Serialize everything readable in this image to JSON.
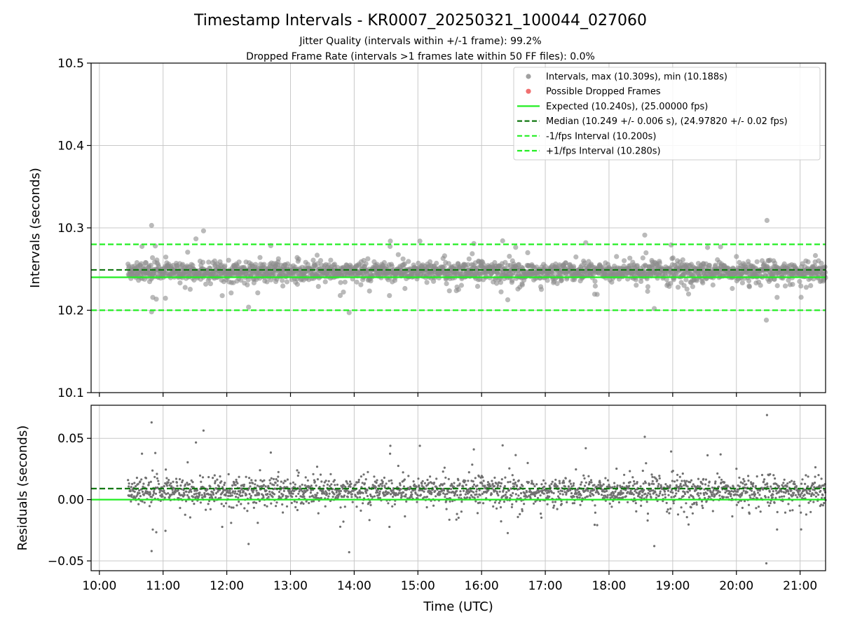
{
  "chart_data": {
    "type": "scatter",
    "title": "Timestamp Intervals - KR0007_20250321_100044_027060",
    "subtitle_lines": [
      "Jitter Quality (intervals within +/-1 frame): 99.2%",
      "Dropped Frame Rate (intervals >1 frames late within 50 FF files): 0.0%"
    ],
    "xlabel": "Time (UTC)",
    "x_range_hours": [
      9.87,
      21.4
    ],
    "x_ticks": [
      "10:00",
      "11:00",
      "12:00",
      "13:00",
      "14:00",
      "15:00",
      "16:00",
      "17:00",
      "18:00",
      "19:00",
      "20:00",
      "21:00"
    ],
    "x_tick_hours": [
      10,
      11,
      12,
      13,
      14,
      15,
      16,
      17,
      18,
      19,
      20,
      21
    ],
    "data_start_hour": 10.45,
    "data_end_hour": 21.4,
    "grid": true,
    "legend_position": "upper right",
    "top_panel": {
      "ylabel": "Intervals (seconds)",
      "ylim": [
        10.1,
        10.5
      ],
      "y_ticks": [
        "10.1",
        "10.2",
        "10.3",
        "10.4",
        "10.5"
      ],
      "y_tick_values": [
        10.1,
        10.2,
        10.3,
        10.4,
        10.5
      ],
      "intervals_max": 10.309,
      "intervals_min": 10.188,
      "expected": 10.24,
      "median": 10.249,
      "minus_fps_interval": 10.2,
      "plus_fps_interval": 10.28
    },
    "bottom_panel": {
      "ylabel": "Residuals (seconds)",
      "ylim": [
        -0.058,
        0.077
      ],
      "y_ticks": [
        "−0.05",
        "0.00",
        "0.05"
      ],
      "y_tick_values": [
        -0.05,
        0.0,
        0.05
      ],
      "median_residual": 0.009,
      "expected_residual": 0.0
    },
    "legend": [
      {
        "label": "Intervals, max (10.309s), min (10.188s)",
        "kind": "dot",
        "color": "#a0a0a0"
      },
      {
        "label": "Possible Dropped Frames",
        "kind": "dot",
        "color": "#f07070"
      },
      {
        "label": "Expected (10.240s), (25.00000 fps)",
        "kind": "solid",
        "color": "#22ee22"
      },
      {
        "label": "Median (10.249 +/- 0.006 s), (24.97820 +/- 0.02 fps)",
        "kind": "dashed",
        "color": "#117711"
      },
      {
        "label": "-1/fps Interval (10.200s)",
        "kind": "dashed",
        "color": "#22ee22"
      },
      {
        "label": "+1/fps Interval (10.280s)",
        "kind": "dashed",
        "color": "#22ee22"
      }
    ],
    "colors": {
      "points_top": "#8c8c8c",
      "points_bottom": "#707070",
      "expected": "#22ee22",
      "median": "#117711",
      "grid": "#c8c8c8"
    }
  }
}
